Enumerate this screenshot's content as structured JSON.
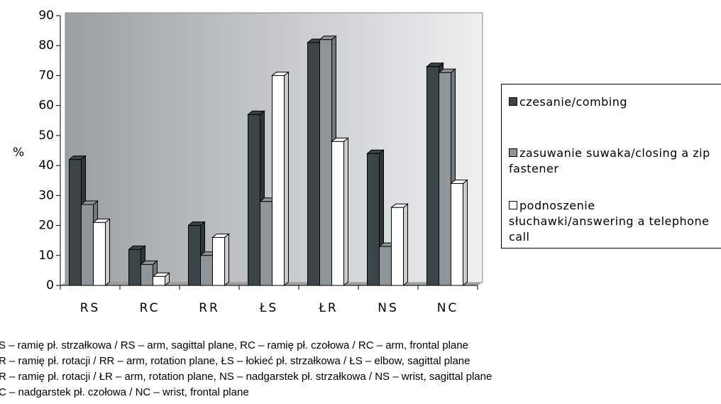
{
  "chart_data": {
    "type": "bar",
    "y_label": "%",
    "categories": [
      "RS",
      "RC",
      "RR",
      "ŁS",
      "ŁR",
      "NS",
      "NC"
    ],
    "series": [
      {
        "name": "czesanie/combing",
        "color": "#3b4447",
        "values": [
          42,
          12,
          20,
          57,
          81,
          44,
          73
        ]
      },
      {
        "name": "zasuwanie suwaka/closing a zip fastener",
        "color": "#8e9598",
        "values": [
          27,
          7,
          10,
          28,
          82,
          13,
          71
        ]
      },
      {
        "name": "podnoszenie słuchawki/answering a telephone call",
        "color": "#ffffff",
        "values": [
          21,
          3,
          16,
          70,
          48,
          26,
          34
        ]
      }
    ],
    "ylim": [
      0,
      90
    ],
    "yticks": [
      0,
      10,
      20,
      30,
      40,
      50,
      60,
      70,
      80,
      90
    ],
    "caption": [
      "S – ramię pł. strzałkowa / RS – arm, sagittal plane, RC – ramię pł. czołowa / RC – arm, frontal plane",
      "R – ramię pł. rotacji / RR – arm, rotation plane, ŁS – łokieć pł. strzałkowa / ŁS – elbow, sagittal plane",
      "R – ramię pł. rotacji / ŁR – arm, rotation plane, NS – nadgarstek pł. strzałkowa / NS – wrist, sagittal plane",
      "C – nadgarstek pł. czołowa / NC – wrist, frontal plane"
    ]
  }
}
